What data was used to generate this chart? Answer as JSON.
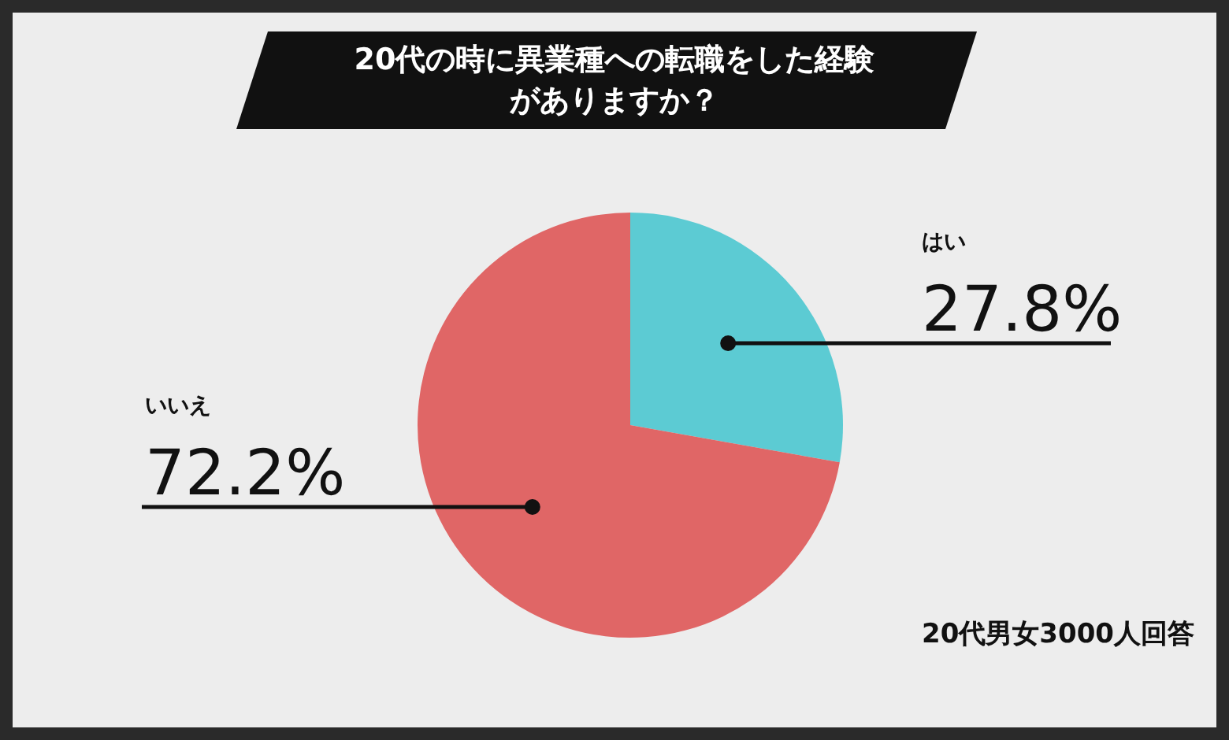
{
  "chart_data": {
    "type": "pie",
    "title": "20代の時に異業種への転職をした経験がありますか？",
    "categories": [
      "はい",
      "いいえ"
    ],
    "values": [
      27.8,
      72.2
    ],
    "colors": [
      "#5ccbd3",
      "#e06666"
    ],
    "value_labels": [
      "27.8%",
      "72.2%"
    ],
    "annotations": [
      "20代男女3000人回答"
    ]
  }
}
